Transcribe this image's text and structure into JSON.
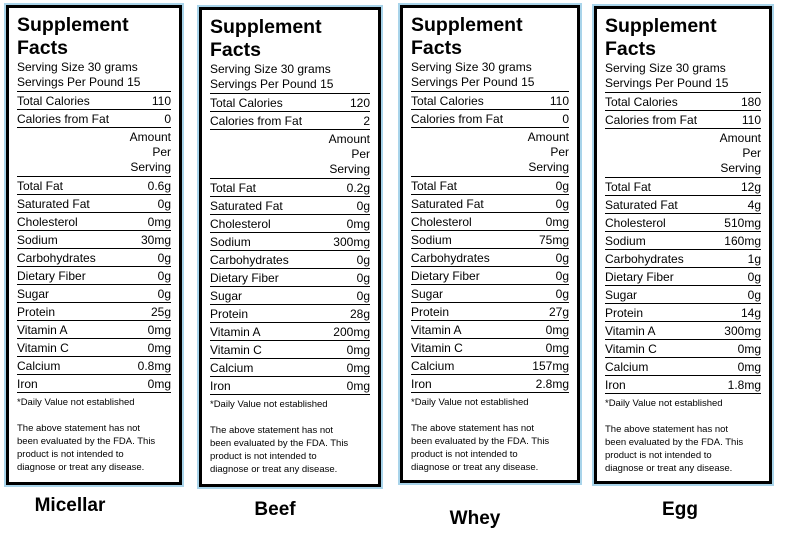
{
  "title": "Supplement Facts",
  "serving_size": "Serving Size 30 grams",
  "servings_per": "Servings Per Pound 15",
  "amount_header": [
    "Amount",
    "Per",
    "Serving"
  ],
  "footnote_dv": "*Daily Value not established",
  "footnote_fda": [
    "The above statement has not",
    "been evaluated by the FDA. This",
    "product is not intended to",
    "diagnose or treat any disease."
  ],
  "row_labels": [
    "Total Fat",
    "Saturated Fat",
    "Cholesterol",
    "Sodium",
    "Carbohydrates",
    "Dietary Fiber",
    "Sugar",
    "Protein",
    "Vitamin A",
    "Vitamin C",
    "Calcium",
    "Iron"
  ],
  "calorie_labels": [
    "Total Calories",
    "Calories from Fat"
  ],
  "panels": [
    {
      "name": "Micellar",
      "calories": [
        "110",
        "0"
      ],
      "values": [
        "0.6g",
        "0g",
        "0mg",
        "30mg",
        "0g",
        "0g",
        "0g",
        "25g",
        "0mg",
        "0mg",
        "0.8mg",
        "0mg"
      ]
    },
    {
      "name": "Beef",
      "calories": [
        "120",
        "2"
      ],
      "values": [
        "0.2g",
        "0g",
        "0mg",
        "300mg",
        "0g",
        "0g",
        "0g",
        "28g",
        "200mg",
        "0mg",
        "0mg",
        "0mg"
      ]
    },
    {
      "name": "Whey",
      "calories": [
        "110",
        "0"
      ],
      "values": [
        "0g",
        "0g",
        "0mg",
        "75mg",
        "0g",
        "0g",
        "0g",
        "27g",
        "0mg",
        "0mg",
        "157mg",
        "2.8mg"
      ]
    },
    {
      "name": "Egg",
      "calories": [
        "180",
        "110"
      ],
      "values": [
        "12g",
        "4g",
        "510mg",
        "160mg",
        "1g",
        "0g",
        "0g",
        "14g",
        "300mg",
        "0mg",
        "0mg",
        "1.8mg"
      ]
    }
  ]
}
